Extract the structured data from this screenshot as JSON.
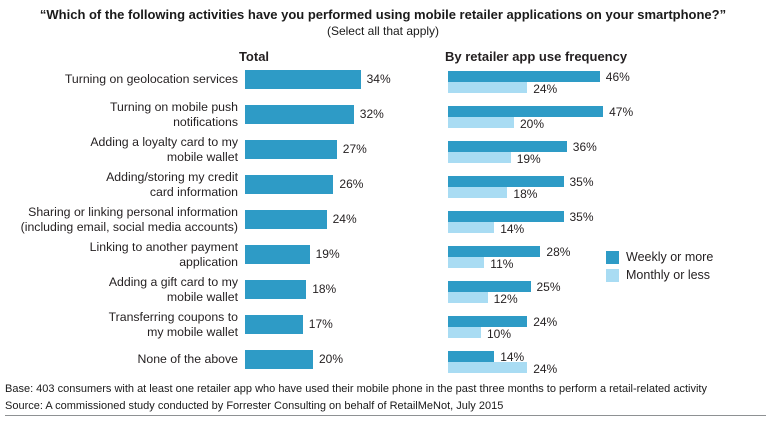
{
  "title": "“Which of the following activities have you performed using mobile retailer applications on your smartphone?”",
  "subtitle": "(Select all that apply)",
  "panels": {
    "left_header": "Total",
    "right_header": "By retailer app use frequency"
  },
  "legend": {
    "items": [
      {
        "label": "Weekly or more"
      },
      {
        "label": "Monthly or less"
      }
    ]
  },
  "footer": {
    "base": "Base: 403 consumers with at least one retailer app who have used their mobile phone in the past three months to perform a retail-related activity",
    "source": "Source: A commissioned study conducted by Forrester Consulting on behalf of RetailMeNot, July 2015"
  },
  "chart_data": {
    "type": "bar",
    "orientation": "horizontal",
    "title": "Which of the following activities have you performed using mobile retailer applications on your smartphone? (Select all that apply)",
    "value_suffix": "%",
    "xlim": [
      0,
      50
    ],
    "grid": false,
    "legend_position": "right",
    "categories": [
      "Turning on geolocation services",
      "Turning on mobile push\nnotifications",
      "Adding a loyalty card to my\nmobile wallet",
      "Adding/storing my credit\ncard information",
      "Sharing or linking personal information\n(including email, social media accounts)",
      "Linking to another payment\napplication",
      "Adding a gift card to my\nmobile wallet",
      "Transferring coupons to\nmy mobile wallet",
      "None of the above"
    ],
    "series": [
      {
        "name": "Total",
        "panel": "Total",
        "color": "#2E9BC6",
        "values": [
          34,
          32,
          27,
          26,
          24,
          19,
          18,
          17,
          20
        ]
      },
      {
        "name": "Weekly or more",
        "panel": "By retailer app use frequency",
        "color": "#2E9BC6",
        "values": [
          46,
          47,
          36,
          35,
          35,
          28,
          25,
          24,
          14
        ]
      },
      {
        "name": "Monthly or less",
        "panel": "By retailer app use frequency",
        "color": "#A9DCF3",
        "values": [
          24,
          20,
          19,
          18,
          14,
          11,
          12,
          10,
          24
        ]
      }
    ]
  }
}
